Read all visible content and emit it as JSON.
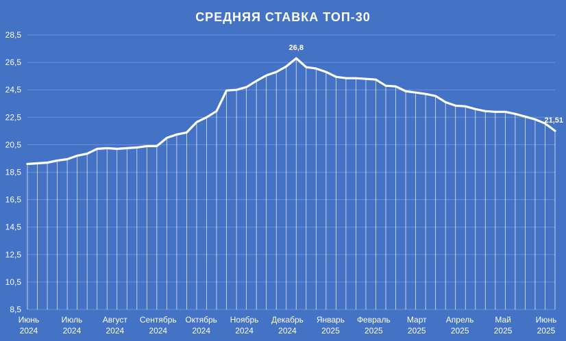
{
  "chart_data": {
    "type": "line",
    "title": "СРЕДНЯЯ СТАВКА ТОП-30",
    "xlabel": "",
    "ylabel": "",
    "ylim": [
      8.5,
      28.5
    ],
    "yticks": [
      "28,5",
      "26,5",
      "24,5",
      "22,5",
      "20,5",
      "18,5",
      "16,5",
      "14,5",
      "12,5",
      "10,5",
      "8,5"
    ],
    "grid": "horizontal",
    "drop_lines": true,
    "colors": {
      "background": "#4472C4",
      "line": "#ffffff",
      "grid": "#6E93D6"
    },
    "xtick_labels": [
      {
        "month": "Июнь",
        "year": "2024"
      },
      {
        "month": "Июль",
        "year": "2024"
      },
      {
        "month": "Август",
        "year": "2024"
      },
      {
        "month": "Сентябрь",
        "year": "2024"
      },
      {
        "month": "Октябрь",
        "year": "2024"
      },
      {
        "month": "Ноябрь",
        "year": "2024"
      },
      {
        "month": "Декабрь",
        "year": "2024"
      },
      {
        "month": "Январь",
        "year": "2025"
      },
      {
        "month": "Февраль",
        "year": "2025"
      },
      {
        "month": "Март",
        "year": "2025"
      },
      {
        "month": "Апрель",
        "year": "2025"
      },
      {
        "month": "Май",
        "year": "2025"
      },
      {
        "month": "Июнь",
        "year": "2025"
      }
    ],
    "values": [
      19.1,
      19.15,
      19.2,
      19.35,
      19.45,
      19.7,
      19.85,
      20.2,
      20.25,
      20.2,
      20.25,
      20.3,
      20.4,
      20.4,
      21.0,
      21.25,
      21.4,
      22.15,
      22.5,
      22.95,
      24.45,
      24.5,
      24.7,
      25.15,
      25.55,
      25.8,
      26.2,
      26.8,
      26.15,
      26.05,
      25.8,
      25.45,
      25.35,
      25.35,
      25.3,
      25.25,
      24.8,
      24.75,
      24.4,
      24.3,
      24.2,
      24.05,
      23.6,
      23.35,
      23.3,
      23.1,
      22.95,
      22.9,
      22.9,
      22.75,
      22.55,
      22.35,
      22.05,
      21.51
    ],
    "data_labels": [
      {
        "index": 27,
        "text": "26,8"
      },
      {
        "index": 53,
        "text": "21,51"
      }
    ]
  }
}
